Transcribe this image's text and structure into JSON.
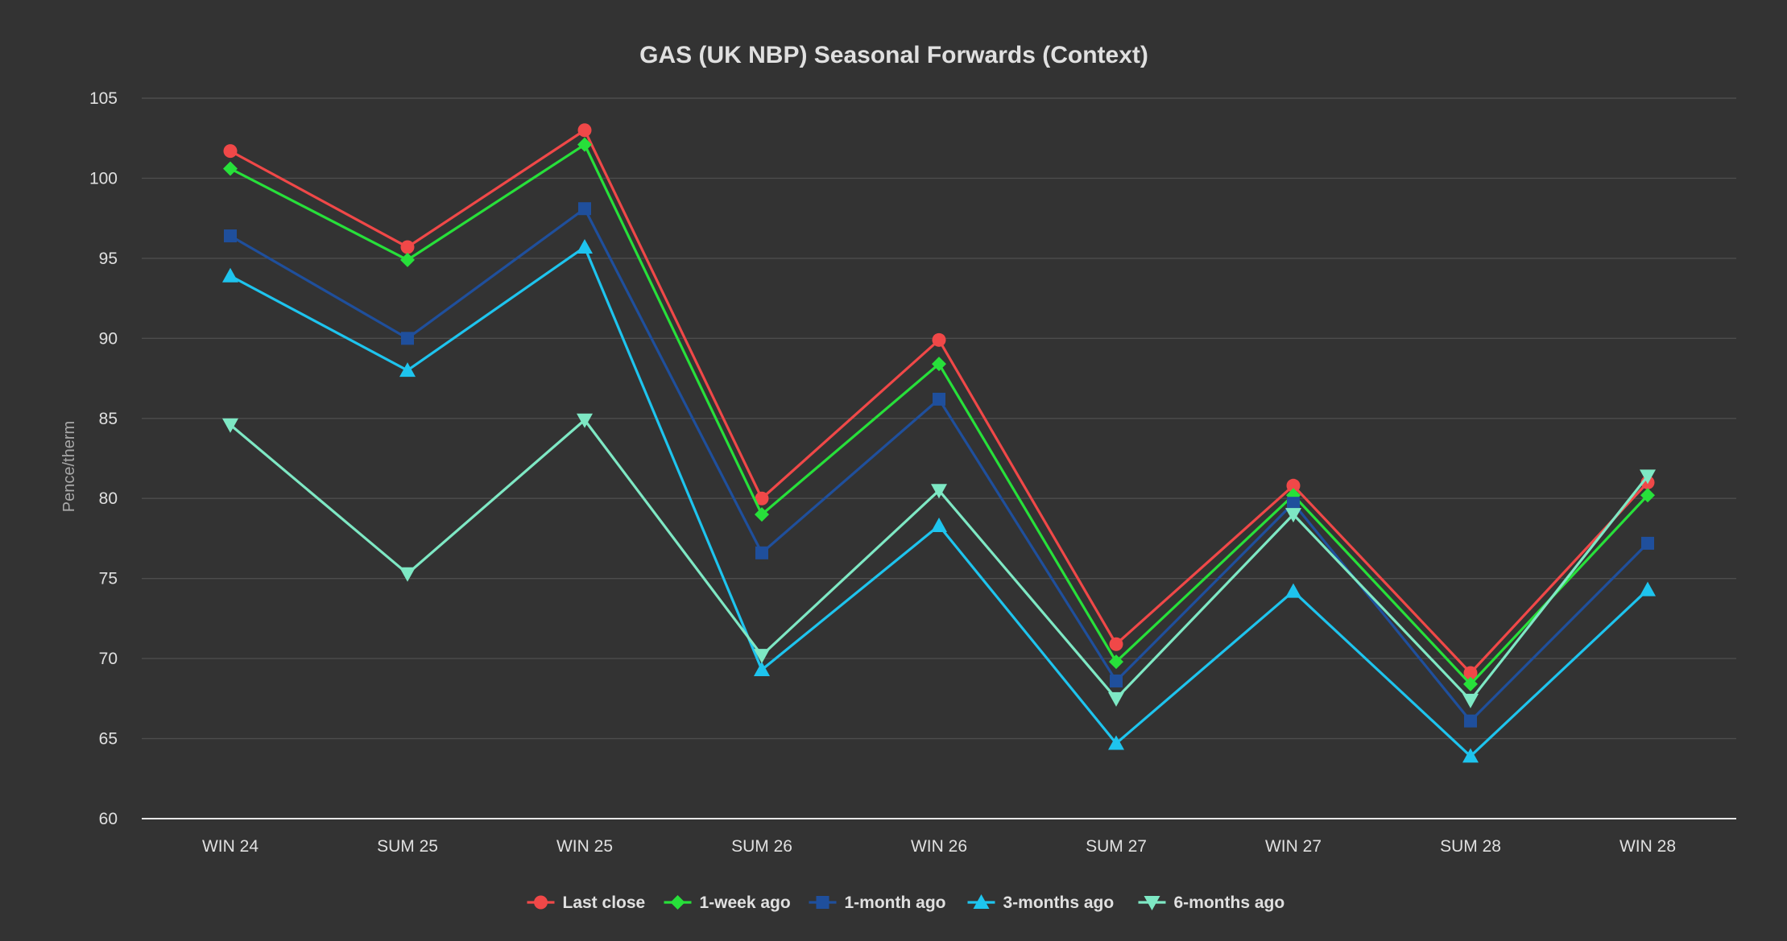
{
  "chart_data": {
    "type": "line",
    "title": "GAS (UK NBP) Seasonal Forwards (Context)",
    "xlabel": "",
    "ylabel": "Pence/therm",
    "ylim": [
      60,
      105
    ],
    "yticks": [
      60,
      65,
      70,
      75,
      80,
      85,
      90,
      95,
      100,
      105
    ],
    "grid": true,
    "legend_position": "bottom",
    "categories": [
      "WIN 24",
      "SUM 25",
      "WIN 25",
      "SUM 26",
      "WIN 26",
      "SUM 27",
      "WIN 27",
      "SUM 28",
      "WIN 28"
    ],
    "series": [
      {
        "name": "Last close",
        "color": "#f04848",
        "marker": "circle",
        "values": [
          101.7,
          95.7,
          103.0,
          80.0,
          89.9,
          70.9,
          80.8,
          69.1,
          81.0
        ]
      },
      {
        "name": "1-week ago",
        "color": "#27e03a",
        "marker": "diamond",
        "values": [
          100.6,
          94.9,
          102.1,
          79.0,
          88.4,
          69.8,
          80.2,
          68.4,
          80.2
        ]
      },
      {
        "name": "1-month ago",
        "color": "#1f4f9c",
        "marker": "square",
        "values": [
          96.4,
          90.0,
          98.1,
          76.6,
          86.2,
          68.6,
          79.7,
          66.1,
          77.2
        ]
      },
      {
        "name": "3-months ago",
        "color": "#1ec4ee",
        "marker": "triangle",
        "values": [
          93.9,
          88.0,
          95.7,
          69.3,
          78.3,
          64.7,
          74.2,
          63.9,
          74.3
        ]
      },
      {
        "name": "6-months ago",
        "color": "#7ee8c4",
        "marker": "triangle-down",
        "values": [
          84.6,
          75.3,
          84.9,
          70.2,
          80.5,
          67.5,
          79.0,
          67.4,
          81.4
        ]
      }
    ]
  }
}
